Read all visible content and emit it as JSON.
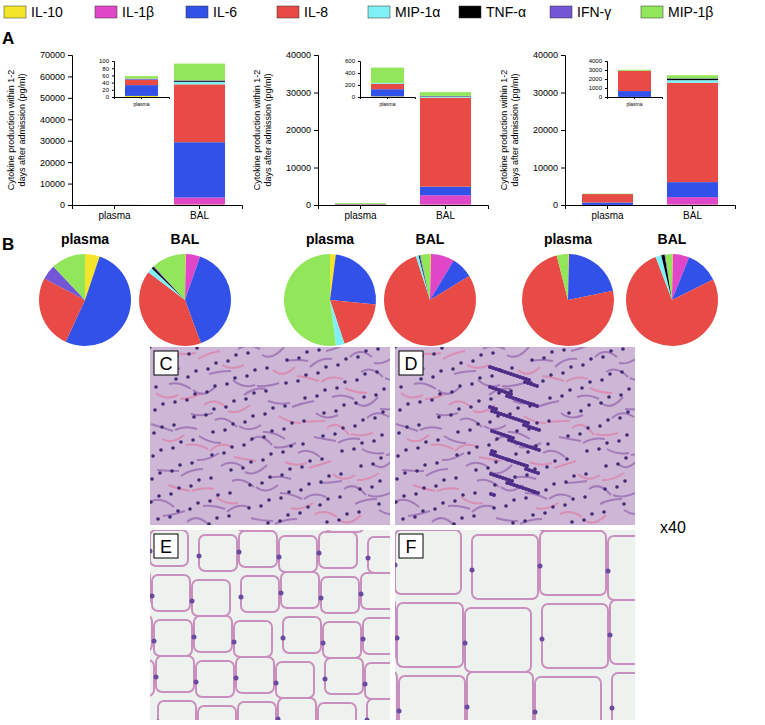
{
  "chart_data": [
    {
      "type": "bar",
      "stacked": true,
      "y_label": [
        "Cytokine production within 1-2",
        "days after admission (pg/ml)"
      ],
      "categories": [
        "plasma",
        "BAL"
      ],
      "ylim": [
        0,
        70000
      ],
      "yticks": [
        0,
        10000,
        20000,
        30000,
        40000,
        50000,
        60000,
        70000
      ],
      "series": [
        {
          "name": "IL-10",
          "color": "#f5e52a",
          "values": [
            3,
            200
          ]
        },
        {
          "name": "IL-1β",
          "color": "#e046c8",
          "values": [
            0,
            3300
          ]
        },
        {
          "name": "IL-6",
          "color": "#3251e8",
          "values": [
            30,
            25800
          ]
        },
        {
          "name": "IL-8",
          "color": "#e84a45",
          "values": [
            15,
            27000
          ]
        },
        {
          "name": "MIP-1α",
          "color": "#7ff0f5",
          "values": [
            0,
            1200
          ]
        },
        {
          "name": "TNF-α",
          "color": "#000000",
          "values": [
            0,
            500
          ]
        },
        {
          "name": "IFN-γ",
          "color": "#7256d6",
          "values": [
            3,
            200
          ]
        },
        {
          "name": "MIP-1β",
          "color": "#92e65a",
          "values": [
            7,
            7800
          ]
        }
      ],
      "inset": {
        "type": "bar",
        "stacked": true,
        "categories": [
          "plasma"
        ],
        "ylim": [
          0,
          100
        ],
        "yticks": [
          0,
          20,
          40,
          60,
          80,
          100
        ],
        "series": [
          {
            "color": "#f5e52a",
            "values": [
              3
            ]
          },
          {
            "color": "#e046c8",
            "values": [
              0
            ]
          },
          {
            "color": "#3251e8",
            "values": [
              30
            ]
          },
          {
            "color": "#e84a45",
            "values": [
              15
            ]
          },
          {
            "color": "#7ff0f5",
            "values": [
              0
            ]
          },
          {
            "color": "#000000",
            "values": [
              0
            ]
          },
          {
            "color": "#7256d6",
            "values": [
              3
            ]
          },
          {
            "color": "#92e65a",
            "values": [
              7
            ]
          }
        ]
      }
    },
    {
      "type": "bar",
      "stacked": true,
      "y_label": [
        "Cytokine production within 1-2",
        "days after admission (pg/ml)"
      ],
      "categories": [
        "plasma",
        "BAL"
      ],
      "ylim": [
        0,
        40000
      ],
      "yticks": [
        0,
        10000,
        20000,
        30000,
        40000
      ],
      "series": [
        {
          "color": "#f5e52a",
          "values": [
            10,
            100
          ]
        },
        {
          "color": "#e046c8",
          "values": [
            0,
            2500
          ]
        },
        {
          "color": "#3251e8",
          "values": [
            120,
            2300
          ]
        },
        {
          "color": "#e84a45",
          "values": [
            90,
            23700
          ]
        },
        {
          "color": "#7ff0f5",
          "values": [
            15,
            300
          ]
        },
        {
          "color": "#000000",
          "values": [
            0,
            100
          ]
        },
        {
          "color": "#7256d6",
          "values": [
            0,
            100
          ]
        },
        {
          "color": "#92e65a",
          "values": [
            255,
            1000
          ]
        }
      ],
      "inset": {
        "type": "bar",
        "stacked": true,
        "categories": [
          "plasma"
        ],
        "ylim": [
          0,
          600
        ],
        "yticks": [
          0,
          200,
          400,
          600
        ],
        "series": [
          {
            "color": "#f5e52a",
            "values": [
              10
            ]
          },
          {
            "color": "#e046c8",
            "values": [
              0
            ]
          },
          {
            "color": "#3251e8",
            "values": [
              120
            ]
          },
          {
            "color": "#e84a45",
            "values": [
              90
            ]
          },
          {
            "color": "#7ff0f5",
            "values": [
              15
            ]
          },
          {
            "color": "#000000",
            "values": [
              0
            ]
          },
          {
            "color": "#7256d6",
            "values": [
              0
            ]
          },
          {
            "color": "#92e65a",
            "values": [
              255
            ]
          }
        ]
      }
    },
    {
      "type": "bar",
      "stacked": true,
      "y_label": [
        "Cytokine production within 1-2",
        "days after admission (pg/ml)"
      ],
      "categories": [
        "plasma",
        "BAL"
      ],
      "ylim": [
        0,
        40000
      ],
      "yticks": [
        0,
        10000,
        20000,
        30000,
        40000
      ],
      "series": [
        {
          "color": "#f5e52a",
          "values": [
            10,
            100
          ]
        },
        {
          "color": "#e046c8",
          "values": [
            0,
            2000
          ]
        },
        {
          "color": "#3251e8",
          "values": [
            650,
            4000
          ]
        },
        {
          "color": "#e84a45",
          "values": [
            2250,
            26500
          ]
        },
        {
          "color": "#7ff0f5",
          "values": [
            0,
            700
          ]
        },
        {
          "color": "#000000",
          "values": [
            0,
            400
          ]
        },
        {
          "color": "#7256d6",
          "values": [
            0,
            100
          ]
        },
        {
          "color": "#92e65a",
          "values": [
            120,
            800
          ]
        }
      ],
      "inset": {
        "type": "bar",
        "stacked": true,
        "categories": [
          "plasma"
        ],
        "ylim": [
          0,
          4000
        ],
        "yticks": [
          0,
          1000,
          2000,
          3000,
          4000
        ],
        "series": [
          {
            "color": "#f5e52a",
            "values": [
              10
            ]
          },
          {
            "color": "#e046c8",
            "values": [
              0
            ]
          },
          {
            "color": "#3251e8",
            "values": [
              650
            ]
          },
          {
            "color": "#e84a45",
            "values": [
              2250
            ]
          },
          {
            "color": "#7ff0f5",
            "values": [
              0
            ]
          },
          {
            "color": "#000000",
            "values": [
              0
            ]
          },
          {
            "color": "#7256d6",
            "values": [
              0
            ]
          },
          {
            "color": "#92e65a",
            "values": [
              120
            ]
          }
        ]
      }
    },
    {
      "type": "pie",
      "title": "plasma",
      "values": [
        3,
        0,
        30,
        15,
        0,
        0,
        3,
        7
      ],
      "colors": [
        "#f5e52a",
        "#e046c8",
        "#3251e8",
        "#e84a45",
        "#7ff0f5",
        "#000000",
        "#7256d6",
        "#92e65a"
      ]
    },
    {
      "type": "pie",
      "title": "BAL",
      "values": [
        200,
        3300,
        25800,
        27000,
        1200,
        500,
        200,
        7800
      ],
      "colors": [
        "#f5e52a",
        "#e046c8",
        "#3251e8",
        "#e84a45",
        "#7ff0f5",
        "#000000",
        "#7256d6",
        "#92e65a"
      ]
    },
    {
      "type": "pie",
      "title": "plasma",
      "values": [
        10,
        0,
        120,
        90,
        15,
        0,
        0,
        255
      ],
      "colors": [
        "#f5e52a",
        "#e046c8",
        "#3251e8",
        "#e84a45",
        "#7ff0f5",
        "#000000",
        "#7256d6",
        "#92e65a"
      ]
    },
    {
      "type": "pie",
      "title": "BAL",
      "values": [
        100,
        2500,
        2300,
        23700,
        300,
        100,
        100,
        1000
      ],
      "colors": [
        "#f5e52a",
        "#e046c8",
        "#3251e8",
        "#e84a45",
        "#7ff0f5",
        "#000000",
        "#7256d6",
        "#92e65a"
      ]
    },
    {
      "type": "pie",
      "title": "plasma",
      "values": [
        10,
        0,
        650,
        2250,
        0,
        0,
        0,
        120
      ],
      "colors": [
        "#f5e52a",
        "#e046c8",
        "#3251e8",
        "#e84a45",
        "#7ff0f5",
        "#000000",
        "#7256d6",
        "#92e65a"
      ]
    },
    {
      "type": "pie",
      "title": "BAL",
      "values": [
        100,
        2000,
        4000,
        26500,
        700,
        400,
        100,
        800
      ],
      "colors": [
        "#f5e52a",
        "#e046c8",
        "#3251e8",
        "#e84a45",
        "#7ff0f5",
        "#000000",
        "#7256d6",
        "#92e65a"
      ]
    }
  ],
  "panel_labels": [
    "A",
    "B"
  ],
  "images": {
    "labels": [
      "C",
      "D",
      "E",
      "F"
    ],
    "magnification": "x40"
  }
}
